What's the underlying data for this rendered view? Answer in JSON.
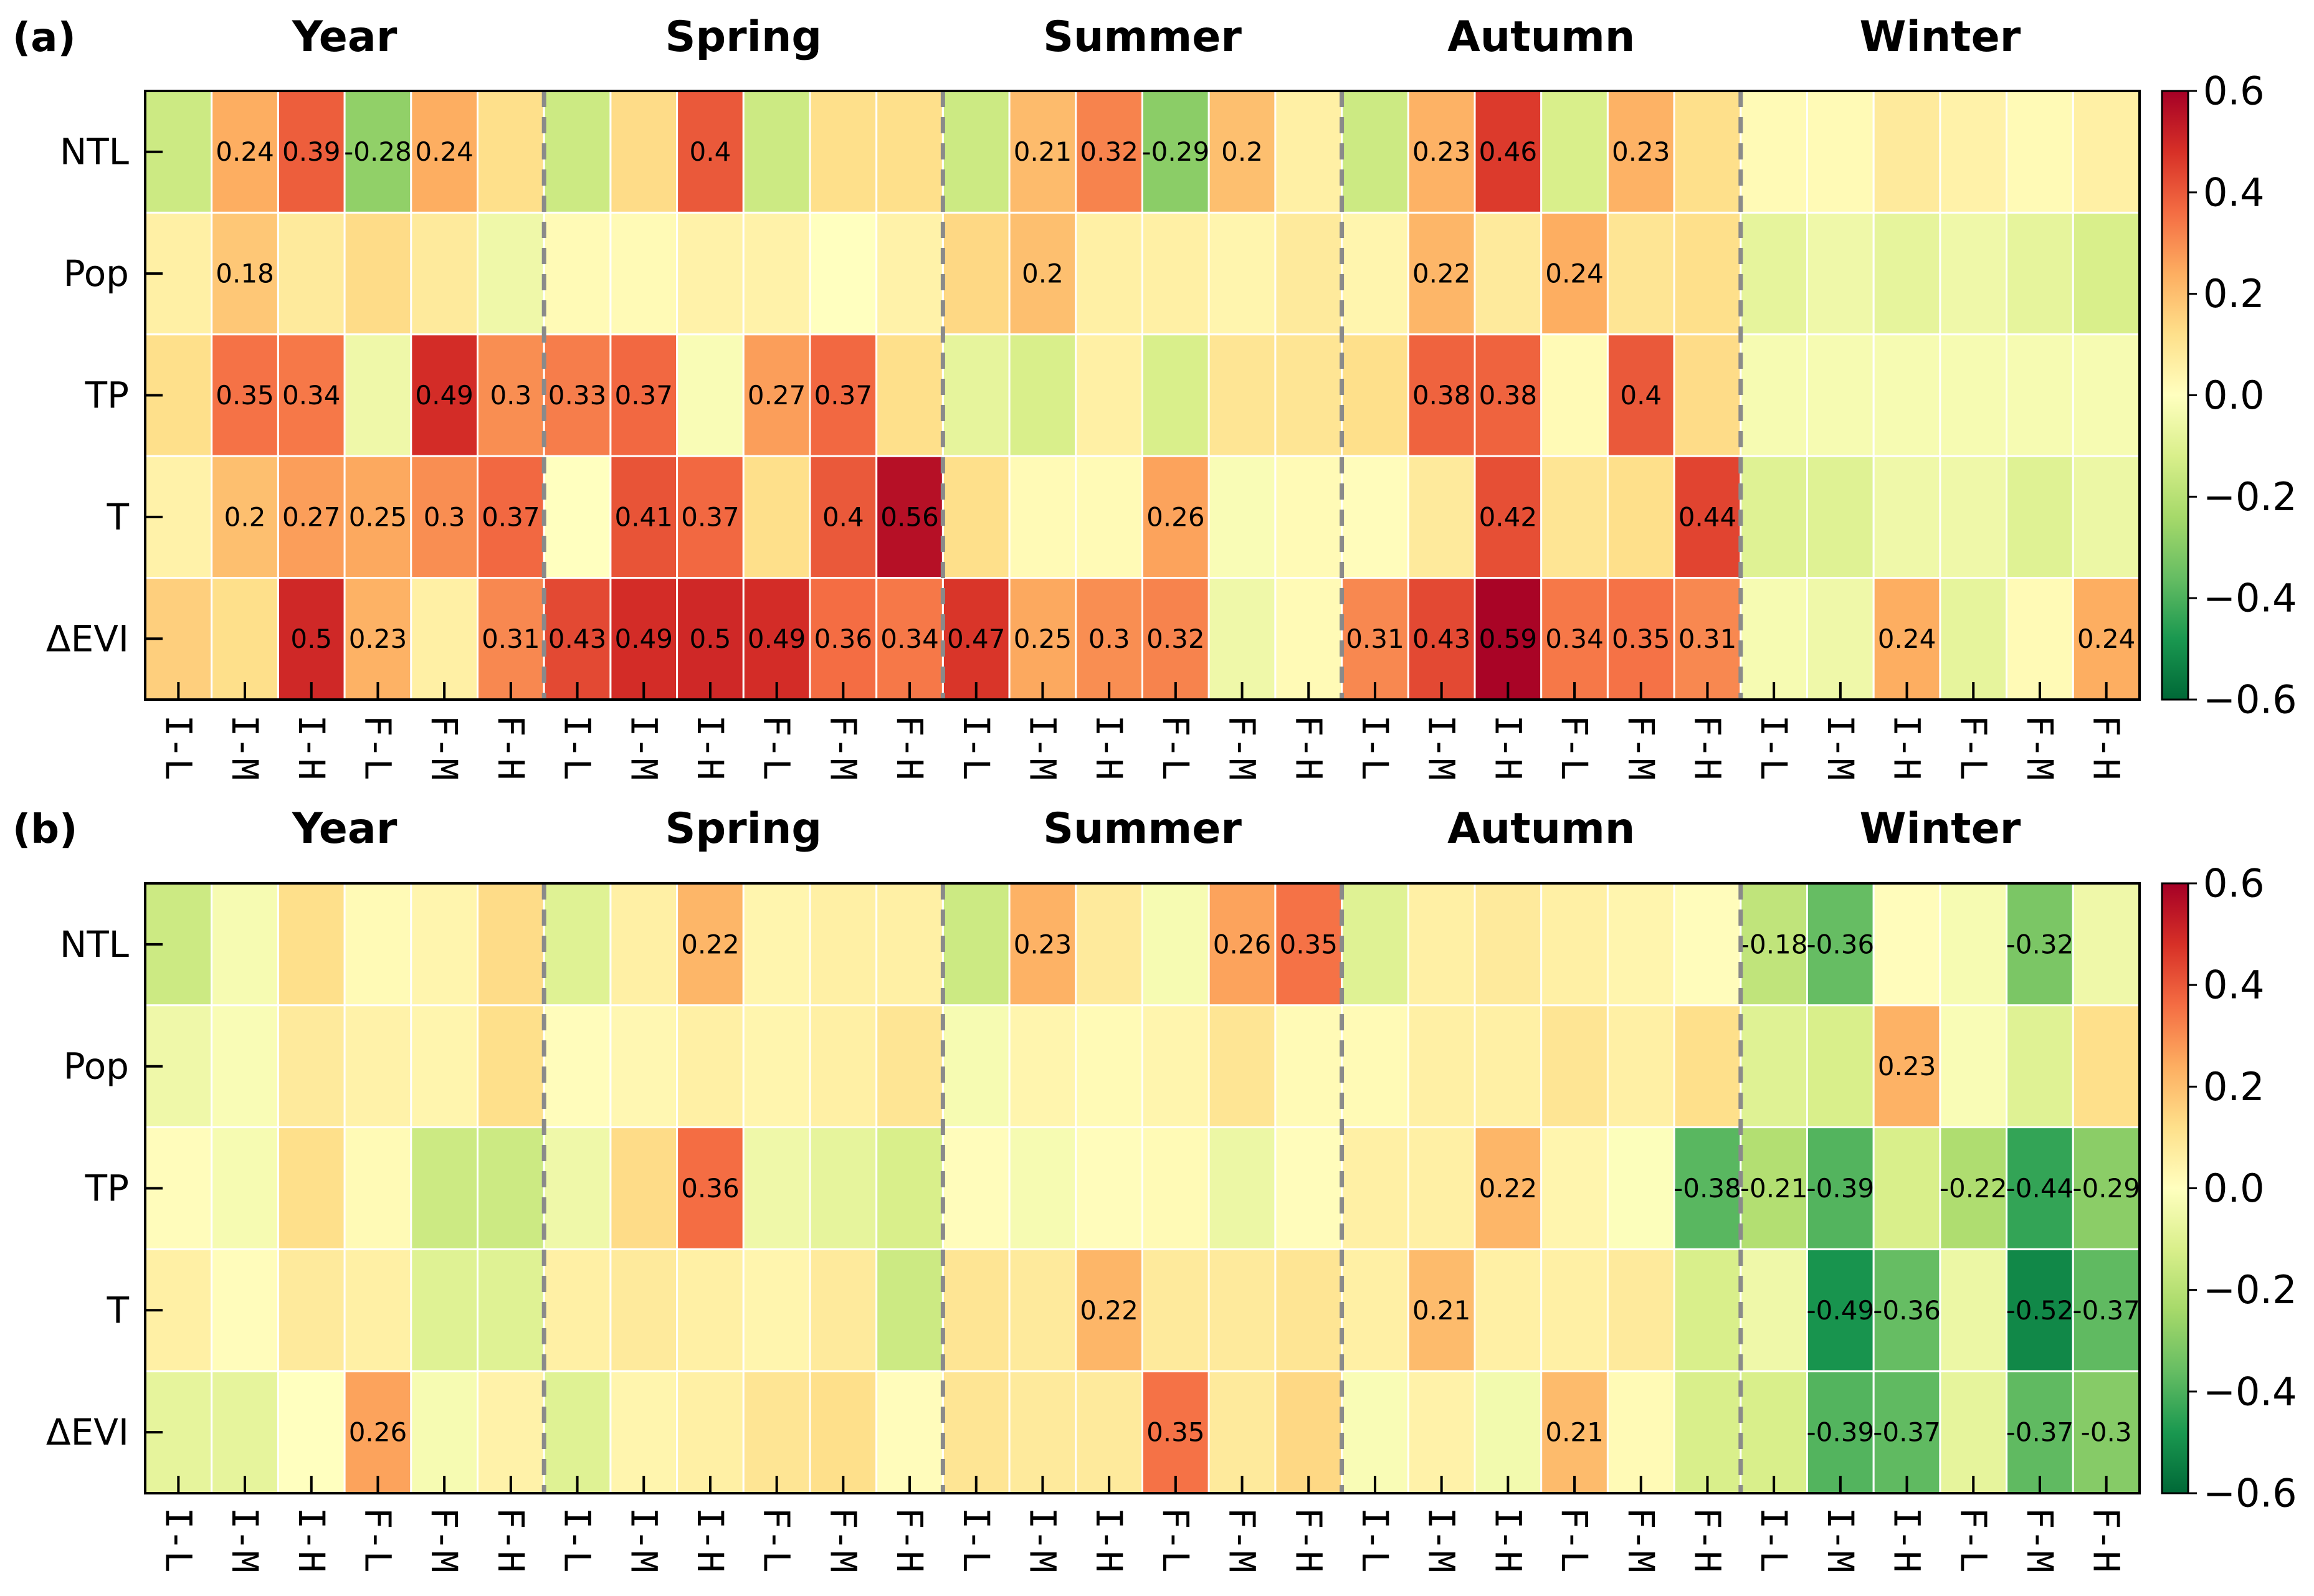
{
  "chart_data": [
    {
      "type": "heatmap",
      "panel_label": "(a)",
      "groups": [
        "Year",
        "Spring",
        "Summer",
        "Autumn",
        "Winter"
      ],
      "columns": [
        "I-L",
        "I-M",
        "I-H",
        "F-L",
        "F-M",
        "F-H"
      ],
      "rows": [
        "NTL",
        "Pop",
        "TP",
        "T",
        "ΔEVI"
      ],
      "values": [
        [
          -0.15,
          0.24,
          0.39,
          -0.28,
          0.24,
          0.12,
          -0.15,
          0.13,
          0.4,
          -0.15,
          0.12,
          0.12,
          -0.15,
          0.21,
          0.32,
          -0.29,
          0.2,
          0.06,
          -0.15,
          0.23,
          0.46,
          -0.12,
          0.23,
          0.12,
          0.02,
          0.02,
          0.08,
          0.05,
          0.02,
          0.06
        ],
        [
          0.06,
          0.18,
          0.08,
          0.13,
          0.08,
          -0.05,
          0.02,
          0.02,
          0.05,
          0.05,
          0.0,
          0.05,
          0.14,
          0.2,
          0.06,
          0.06,
          0.04,
          0.08,
          0.04,
          0.22,
          0.08,
          0.24,
          0.1,
          0.12,
          -0.08,
          -0.05,
          -0.08,
          -0.05,
          -0.08,
          -0.12
        ],
        [
          0.12,
          0.35,
          0.34,
          -0.05,
          0.49,
          0.3,
          0.33,
          0.37,
          -0.02,
          0.27,
          0.37,
          0.12,
          -0.08,
          -0.12,
          0.06,
          -0.12,
          0.1,
          0.1,
          0.12,
          0.38,
          0.38,
          0.02,
          0.4,
          0.13,
          -0.03,
          -0.03,
          -0.03,
          -0.03,
          -0.03,
          -0.03
        ],
        [
          0.05,
          0.2,
          0.27,
          0.25,
          0.3,
          0.37,
          0.0,
          0.41,
          0.37,
          0.12,
          0.4,
          0.56,
          0.12,
          0.02,
          0.02,
          0.26,
          -0.02,
          0.02,
          0.01,
          0.08,
          0.42,
          0.1,
          0.12,
          0.44,
          -0.1,
          -0.1,
          -0.05,
          -0.05,
          -0.1,
          -0.06
        ],
        [
          0.16,
          0.12,
          0.5,
          0.23,
          0.06,
          0.31,
          0.43,
          0.49,
          0.5,
          0.49,
          0.36,
          0.34,
          0.47,
          0.25,
          0.3,
          0.32,
          -0.05,
          0.02,
          0.31,
          0.43,
          0.59,
          0.34,
          0.35,
          0.31,
          -0.03,
          -0.05,
          0.24,
          -0.08,
          0.02,
          0.24
        ]
      ],
      "value_labels": [
        [
          "",
          "0.24",
          "0.39",
          "-0.28",
          "0.24",
          "",
          "",
          "",
          "0.4",
          "",
          "",
          "",
          "",
          "0.21",
          "0.32",
          "-0.29",
          "0.2",
          "",
          "",
          "0.23",
          "0.46",
          "",
          "0.23",
          "",
          "",
          "",
          "",
          "",
          "",
          ""
        ],
        [
          "",
          "0.18",
          "",
          "",
          "",
          "",
          "",
          "",
          "",
          "",
          "",
          "",
          "",
          "0.2",
          "",
          "",
          "",
          "",
          "",
          "0.22",
          "",
          "0.24",
          "",
          "",
          "",
          "",
          "",
          "",
          "",
          ""
        ],
        [
          "",
          "0.35",
          "0.34",
          "",
          "0.49",
          "0.3",
          "0.33",
          "0.37",
          "",
          "0.27",
          "0.37",
          "",
          "",
          "",
          "",
          "",
          "",
          "",
          "",
          "0.38",
          "0.38",
          "",
          "0.4",
          "",
          "",
          "",
          "",
          "",
          "",
          ""
        ],
        [
          "",
          "0.2",
          "0.27",
          "0.25",
          "0.3",
          "0.37",
          "",
          "0.41",
          "0.37",
          "",
          "0.4",
          "0.56",
          "",
          "",
          "",
          "0.26",
          "",
          "",
          "",
          "",
          "0.42",
          "",
          "",
          "0.44",
          "",
          "",
          "",
          "",
          "",
          ""
        ],
        [
          "",
          "",
          "0.5",
          "0.23",
          "",
          "0.31",
          "0.43",
          "0.49",
          "0.5",
          "0.49",
          "0.36",
          "0.34",
          "0.47",
          "0.25",
          "0.3",
          "0.32",
          "",
          "",
          "0.31",
          "0.43",
          "0.59",
          "0.34",
          "0.35",
          "0.31",
          "",
          "",
          "0.24",
          "",
          "",
          "0.24"
        ]
      ],
      "colorbar": {
        "range": [
          -0.6,
          0.6
        ],
        "ticks": [
          "0.6",
          "0.4",
          "0.2",
          "0.0",
          "−0.2",
          "−0.4",
          "−0.6"
        ],
        "colormap": "RdYlGn_r"
      }
    },
    {
      "type": "heatmap",
      "panel_label": "(b)",
      "groups": [
        "Year",
        "Spring",
        "Summer",
        "Autumn",
        "Winter"
      ],
      "columns": [
        "I-L",
        "I-M",
        "I-H",
        "F-L",
        "F-M",
        "F-H"
      ],
      "rows": [
        "NTL",
        "Pop",
        "TP",
        "T",
        "ΔEVI"
      ],
      "values": [
        [
          -0.15,
          -0.03,
          0.12,
          0.02,
          0.04,
          0.13,
          -0.1,
          0.06,
          0.22,
          0.04,
          0.06,
          0.06,
          -0.15,
          0.23,
          0.08,
          -0.03,
          0.26,
          0.35,
          -0.1,
          0.06,
          0.08,
          0.06,
          0.04,
          0.01,
          -0.18,
          -0.36,
          0.01,
          -0.03,
          -0.32,
          -0.05
        ],
        [
          -0.05,
          -0.02,
          0.08,
          0.05,
          0.04,
          0.12,
          0.01,
          0.03,
          0.06,
          0.04,
          0.06,
          0.1,
          -0.03,
          0.04,
          0.02,
          0.04,
          0.1,
          0.02,
          0.02,
          0.06,
          0.06,
          0.1,
          0.06,
          0.12,
          -0.1,
          -0.12,
          0.23,
          -0.02,
          -0.1,
          0.12
        ],
        [
          0.01,
          -0.03,
          0.12,
          0.02,
          -0.15,
          -0.15,
          -0.05,
          0.13,
          0.36,
          -0.05,
          -0.08,
          -0.12,
          0.01,
          -0.03,
          0.01,
          0.02,
          -0.06,
          0.01,
          0.06,
          0.06,
          0.22,
          0.04,
          -0.01,
          -0.38,
          -0.21,
          -0.39,
          -0.12,
          -0.22,
          -0.44,
          -0.29
        ],
        [
          0.06,
          0.01,
          0.08,
          0.06,
          -0.1,
          -0.1,
          0.06,
          0.08,
          0.06,
          0.04,
          0.08,
          -0.15,
          0.1,
          0.08,
          0.22,
          0.08,
          0.08,
          0.1,
          0.06,
          0.21,
          0.06,
          0.06,
          0.08,
          -0.12,
          -0.05,
          -0.49,
          -0.36,
          -0.06,
          -0.52,
          -0.37
        ],
        [
          -0.08,
          -0.08,
          0.0,
          0.26,
          -0.03,
          0.05,
          -0.1,
          0.04,
          0.06,
          0.1,
          0.12,
          0.01,
          0.1,
          0.08,
          0.08,
          0.35,
          0.08,
          0.14,
          -0.02,
          0.05,
          -0.04,
          0.21,
          0.02,
          -0.12,
          -0.12,
          -0.39,
          -0.37,
          -0.08,
          -0.37,
          -0.3
        ]
      ],
      "value_labels": [
        [
          "",
          "",
          "",
          "",
          "",
          "",
          "",
          "",
          "0.22",
          "",
          "",
          "",
          "",
          "0.23",
          "",
          "",
          "0.26",
          "0.35",
          "",
          "",
          "",
          "",
          "",
          "",
          "-0.18",
          "-0.36",
          "",
          "",
          "-0.32",
          ""
        ],
        [
          "",
          "",
          "",
          "",
          "",
          "",
          "",
          "",
          "",
          "",
          "",
          "",
          "",
          "",
          "",
          "",
          "",
          "",
          "",
          "",
          "",
          "",
          "",
          "",
          "",
          "",
          "0.23",
          "",
          "",
          ""
        ],
        [
          "",
          "",
          "",
          "",
          "",
          "",
          "",
          "",
          "0.36",
          "",
          "",
          "",
          "",
          "",
          "",
          "",
          "",
          "",
          "",
          "",
          "0.22",
          "",
          "",
          "-0.38",
          "-0.21",
          "-0.39",
          "",
          "-0.22",
          "-0.44",
          "-0.29"
        ],
        [
          "",
          "",
          "",
          "",
          "",
          "",
          "",
          "",
          "",
          "",
          "",
          "",
          "",
          "",
          "0.22",
          "",
          "",
          "",
          "",
          "0.21",
          "",
          "",
          "",
          "",
          "",
          "-0.49",
          "-0.36",
          "",
          "-0.52",
          "-0.37"
        ],
        [
          "",
          "",
          "",
          "0.26",
          "",
          "",
          "",
          "",
          "",
          "",
          "",
          "",
          "",
          "",
          "",
          "0.35",
          "",
          "",
          "",
          "",
          "",
          "0.21",
          "",
          "",
          "",
          "-0.39",
          "-0.37",
          "",
          "-0.37",
          "-0.3"
        ]
      ],
      "colorbar": {
        "range": [
          -0.6,
          0.6
        ],
        "ticks": [
          "0.6",
          "0.4",
          "0.2",
          "0.0",
          "−0.2",
          "−0.4",
          "−0.6"
        ],
        "colormap": "RdYlGn_r"
      }
    }
  ]
}
